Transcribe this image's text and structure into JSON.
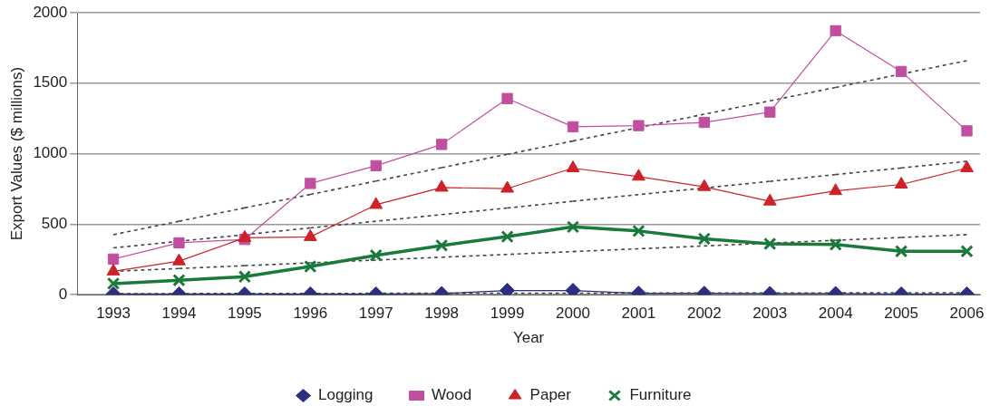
{
  "chart_data": {
    "type": "line",
    "xlabel": "Year",
    "ylabel": "Export Values ($ millions)",
    "x": [
      1993,
      1994,
      1995,
      1996,
      1997,
      1998,
      1999,
      2000,
      2001,
      2002,
      2003,
      2004,
      2005,
      2006
    ],
    "xlim": [
      1992.45,
      2006.2
    ],
    "xticks": [
      1993,
      1994,
      1995,
      1996,
      1997,
      1998,
      1999,
      2000,
      2001,
      2002,
      2003,
      2004,
      2005,
      2006
    ],
    "ylim": [
      0,
      2000
    ],
    "yticks": [
      0,
      500,
      1000,
      1500,
      2000
    ],
    "grid": "y",
    "legend": "bottom",
    "line_style": "solid",
    "series": [
      {
        "name": "Logging",
        "color": "#2b2f7e",
        "marker": "diamond",
        "values": [
          5,
          5,
          5,
          5,
          5,
          8,
          30,
          30,
          10,
          10,
          8,
          8,
          5,
          5
        ]
      },
      {
        "name": "Wood",
        "color": "#c0509f",
        "marker": "square",
        "values": [
          253,
          368,
          392,
          789,
          915,
          1066,
          1391,
          1191,
          1199,
          1222,
          1295,
          1872,
          1583,
          1162
        ]
      },
      {
        "name": "Paper",
        "color": "#cc2229",
        "marker": "triangle",
        "values": [
          166,
          238,
          404,
          410,
          638,
          760,
          753,
          898,
          838,
          765,
          662,
          736,
          782,
          898
        ]
      },
      {
        "name": "Furniture",
        "color": "#1a7a3c",
        "marker": "cross",
        "values": [
          79,
          103,
          128,
          200,
          279,
          349,
          412,
          481,
          452,
          397,
          361,
          356,
          308,
          308
        ]
      },
      {
        "type": "line",
        "color": "#444444",
        "marker": "none",
        "line_style": "dashed",
        "values": [
          8,
          8,
          9,
          9,
          10,
          10,
          11,
          11,
          12,
          12,
          13,
          13,
          14,
          14
        ]
      },
      {
        "type": "line",
        "color": "#444444",
        "marker": "none",
        "line_style": "dashed",
        "values": [
          426,
          521,
          616,
          711,
          806,
          901,
          996,
          1090,
          1185,
          1280,
          1375,
          1470,
          1565,
          1660
        ]
      },
      {
        "type": "line",
        "color": "#444444",
        "marker": "none",
        "line_style": "dashed",
        "values": [
          332,
          379,
          426,
          474,
          521,
          568,
          615,
          663,
          710,
          757,
          804,
          852,
          899,
          946
        ]
      },
      {
        "type": "line",
        "color": "#444444",
        "marker": "none",
        "line_style": "dashed",
        "values": [
          166,
          186,
          206,
          226,
          246,
          266,
          286,
          306,
          326,
          346,
          366,
          386,
          406,
          426
        ]
      }
    ]
  }
}
